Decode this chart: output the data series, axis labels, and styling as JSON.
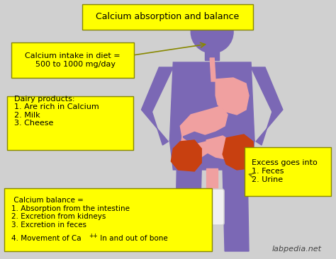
{
  "bg_color": "#d0d0d0",
  "title": "Calcium absorption and balance",
  "body_color": "#7b68b5",
  "stomach_color": "#f0a0a0",
  "intestine_color": "#f0a0a0",
  "colon_color": "#c84010",
  "colon2_color": "#d06030",
  "bladder_color": "#e8e8e8",
  "box_color": "#ffff00",
  "box_edge": "#888800",
  "text_color": "#000000",
  "box1_text": "Calcium intake in diet =\n  500 to 1000 mg/day",
  "box2_text": "Dairy products:\n1. Are rich in Calcium\n2. Milk\n3. Cheese",
  "box3_text": " Calcium balance =\n1. Absorption from the intestine\n2. Excretion from kidneys\n3. Excretion in feces\n4. Movement of Ca",
  "box3_suffix": " In and out of bone",
  "box4_text": "Excess goes into\n1. Feces\n2. Urine",
  "title_text": "Calcium absorption and balance",
  "watermark": "labpedia.net"
}
